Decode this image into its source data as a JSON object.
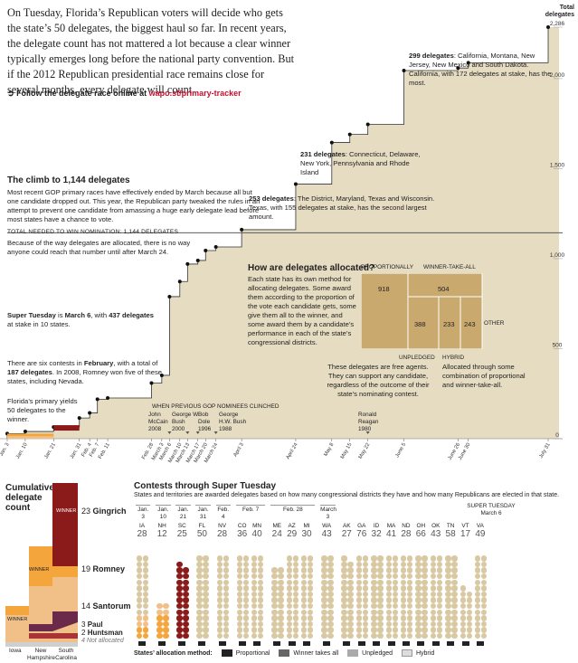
{
  "intro": {
    "text": "On Tuesday, Florida’s Republican voters will decide who gets the state’s 50 delegates, the biggest haul so far. In recent years, the delegate count has not mattered a lot because a clear winner typically emerges long before the national party convention. But if the 2012 Republican presidential race remains close for several months, every delegate will count.",
    "follow_label": "Follow the delegate race online at",
    "follow_url": "wapo.st/primary-tracker"
  },
  "climb": {
    "title": "The climb to 1,144 delegates",
    "body": "Most recent GOP primary races have effectively ended by March because all but one candidate dropped out. This year, the Republican party tweaked the rules in an attempt to prevent one candidate from amassing a huge early delegate lead before most states have a chance to vote."
  },
  "nomination": {
    "label": "TOTAL NEEDED TO WIN NOMINATION: 1,144 DELEGATES",
    "note": "Because of the way delegates are allocated, there is no way anyone could reach that number until after March 24."
  },
  "annotations": {
    "super_tuesday_a": "Super Tuesday",
    "super_tuesday_b": "is",
    "super_tuesday_c": "March 6",
    "super_tuesday_d": ", with",
    "super_tuesday_e": "437 delegates",
    "super_tuesday_f": "at stake in 10 states.",
    "feb_a": "There are six contests in",
    "feb_b": "February",
    "feb_c": ", with a total of",
    "feb_d": "187",
    "feb_e": "delegates",
    "feb_f": ". In 2008, Romney won five of these states, including Nevada.",
    "florida": "Florida’s primary yields 50 delegates to the winner.",
    "a299_bold": "299 delegates",
    "a299_text": ": California, Montana, New Jersey, New Mexico and South Dakota. California, with 172 delegates at stake, has the most.",
    "a231_bold": "231 delegates",
    "a231_text": ": Connecticut, Delaware, New York, Pennsylvania and Rhode Island",
    "a253_bold": "253 delegates",
    "a253_text": ": The District, Maryland, Texas and Wisconsin. Texas, with 155 delegates at stake, has the second largest amount."
  },
  "how": {
    "title": "How are delegates allocated?",
    "body": "Each state has its own method for allocating delegates. Some award them according to the proportion of the vote each candidate gets, some give them all to the winner, and some award them by a candidate’s performance in each of the state’s congressional districts.",
    "proportionally": "PROPORTIONALLY",
    "wta": "WINNER-TAKE-ALL",
    "other": "OTHER",
    "unpledged": "UNPLEDGED",
    "unpledged_note": "These delegates are free agents. They can support any candidate, regardless of the outcome of their state’s nominating contest.",
    "hybrid": "HYBRID",
    "hybrid_note": "Allocated through some combination of proportional and winner-take-all.",
    "v918": "918",
    "v504": "504",
    "v388": "388",
    "v233": "233",
    "v243": "243"
  },
  "nominees": {
    "label": "WHEN PREVIOUS GOP NOMINEES CLINCHED",
    "items": [
      {
        "name": "John McCain",
        "year": "2008"
      },
      {
        "name": "George W. Bush",
        "year": "2000"
      },
      {
        "name": "Bob Dole",
        "year": "1996"
      },
      {
        "name": "George H.W. Bush",
        "year": "1988"
      },
      {
        "name": "Ronald Reagan",
        "year": "1980"
      }
    ]
  },
  "yaxis": {
    "title": "Total delegates",
    "ticks": [
      "0",
      "500",
      "1,000",
      "1,500",
      "2,000",
      "2,286"
    ]
  },
  "xaxis": {
    "ticks": [
      "Jan. 3",
      "Jan. 10",
      "Jan. 21",
      "Jan. 31",
      "Feb. 4",
      "Feb. 7",
      "Feb. 11",
      "Feb. 28",
      "March 3",
      "March 6",
      "March 10",
      "March 13",
      "March 17",
      "March 20",
      "March 24",
      "April 3",
      "April 24",
      "May 8",
      "May 15",
      "May 22",
      "June 5",
      "June 26",
      "June 30",
      "July 31"
    ]
  },
  "cumulative": {
    "title": "Cumulative delegate count",
    "iowa": "Iowa",
    "nh": "New Hampshire",
    "sc": "South Carolina",
    "winner": "WINNER",
    "gingrich_n": "23",
    "gingrich": "Gingrich",
    "romney_n": "19",
    "romney": "Romney",
    "santorum_n": "14",
    "santorum": "Santorum",
    "paul_n": "3",
    "paul": "Paul",
    "huntsman_n": "2",
    "huntsman": "Huntsman",
    "na_n": "4",
    "na": "Not allocated"
  },
  "contests": {
    "title": "Contests through Super Tuesday",
    "subtitle": "States and territories are awarded delegates based on how many congressional districts they have and how many Republicans are elected in that state.",
    "super_tuesday": "SUPER TUESDAY",
    "super_tuesday_date": "March 6",
    "groups": [
      {
        "date": "Jan. 3",
        "states": [
          {
            "st": "IA",
            "n": 28
          }
        ]
      },
      {
        "date": "Jan. 10",
        "states": [
          {
            "st": "NH",
            "n": 12
          }
        ]
      },
      {
        "date": "Jan. 21",
        "states": [
          {
            "st": "SC",
            "n": 25
          }
        ]
      },
      {
        "date": "Jan. 31",
        "states": [
          {
            "st": "FL",
            "n": 50
          }
        ]
      },
      {
        "date": "Feb. 4",
        "states": [
          {
            "st": "NV",
            "n": 28
          }
        ]
      },
      {
        "date": "Feb. 7",
        "states": [
          {
            "st": "CO",
            "n": 36
          },
          {
            "st": "MN",
            "n": 40
          }
        ]
      },
      {
        "date": "Feb. 28",
        "states": [
          {
            "st": "ME",
            "n": 24
          },
          {
            "st": "AZ",
            "n": 29
          },
          {
            "st": "MI",
            "n": 30
          }
        ]
      },
      {
        "date": "March 3",
        "states": [
          {
            "st": "WA",
            "n": 43
          }
        ]
      },
      {
        "date": "",
        "states": [
          {
            "st": "AK",
            "n": 27
          },
          {
            "st": "GA",
            "n": 76
          },
          {
            "st": "ID",
            "n": 32
          },
          {
            "st": "MA",
            "n": 41
          },
          {
            "st": "ND",
            "n": 28
          },
          {
            "st": "OH",
            "n": 66
          },
          {
            "st": "OK",
            "n": 43
          },
          {
            "st": "TN",
            "n": 58
          },
          {
            "st": "VT",
            "n": 17
          },
          {
            "st": "VA",
            "n": 49
          }
        ]
      }
    ]
  },
  "methods": {
    "label": "States’ allocation method:",
    "items": [
      "Proportional",
      "Winner takes all",
      "Unpledged",
      "Hybrid"
    ]
  },
  "colors": {
    "tan": "#e6dcc2",
    "tan_dark": "#c9b48a",
    "dot_tan": "#d9c9a3",
    "gingrich": "#8b1a1a",
    "romney": "#f4a53b",
    "santorum": "#f0c088",
    "paul": "#6b2a4a",
    "huntsman": "#a33",
    "na": "#cfcfcf"
  },
  "chart_data": {
    "type": "area",
    "x": [
      "Jan. 3",
      "Jan. 10",
      "Jan. 21",
      "Jan. 31",
      "Feb. 4",
      "Feb. 7",
      "Feb. 11",
      "Feb. 28",
      "March 3",
      "March 6",
      "March 10",
      "March 13",
      "March 17",
      "March 20",
      "March 24",
      "April 3",
      "April 24",
      "May 8",
      "May 15",
      "May 22",
      "June 5",
      "June 26",
      "June 30",
      "July 31"
    ],
    "y": [
      28,
      40,
      65,
      115,
      143,
      219,
      226,
      309,
      352,
      789,
      873,
      970,
      990,
      1045,
      1065,
      1161,
      1414,
      1645,
      1690,
      1746,
      2045,
      2059,
      2088,
      2286
    ],
    "ylim": [
      0,
      2286
    ],
    "hline": 1144
  }
}
